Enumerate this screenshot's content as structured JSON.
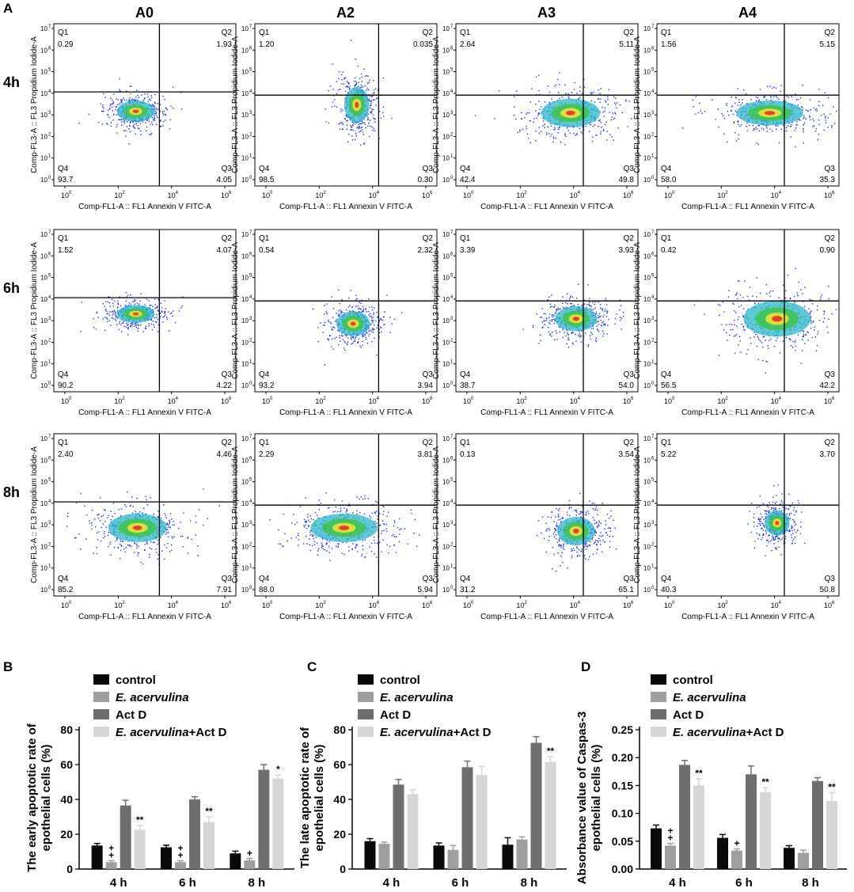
{
  "panel_letters": {
    "a": "A",
    "b": "B",
    "c": "C",
    "d": "D"
  },
  "flow": {
    "groups": [
      "A0",
      "A2",
      "A3",
      "A4"
    ],
    "times": [
      "4h",
      "6h",
      "8h"
    ],
    "x_axis_label": "Comp-FL1-A :: FL1 Annexin V FITC-A",
    "y_axis_label": "Comp-FL3-A :: FL3 Propidium Iodide-A",
    "tick_labels": [
      "10",
      "10",
      "10",
      "10"
    ],
    "tick_exponents": [
      "0",
      "2",
      "4",
      "6"
    ],
    "y_tick_labels": [
      "10",
      "10",
      "10",
      "10",
      "10",
      "10",
      "10",
      "10"
    ],
    "y_tick_exponents": [
      "0",
      "1",
      "2",
      "3",
      "4",
      "5",
      "6",
      "7"
    ],
    "quadrant_names": [
      "Q1",
      "Q2",
      "Q3",
      "Q4"
    ],
    "quadrants": [
      [
        {
          "Q1": "0.29",
          "Q2": "1.93",
          "Q3": "4.05",
          "Q4": "93.7"
        },
        {
          "Q1": "1.20",
          "Q2": "0.035",
          "Q3": "0.30",
          "Q4": "98.5"
        },
        {
          "Q1": "2.64",
          "Q2": "5.11",
          "Q3": "49.8",
          "Q4": "42.4"
        },
        {
          "Q1": "1.56",
          "Q2": "5.15",
          "Q3": "35.3",
          "Q4": "58.0"
        }
      ],
      [
        {
          "Q1": "1.52",
          "Q2": "4.07",
          "Q3": "4.22",
          "Q4": "90.2"
        },
        {
          "Q1": "0.54",
          "Q2": "2.32",
          "Q3": "3.94",
          "Q4": "93.2"
        },
        {
          "Q1": "3.39",
          "Q2": "3.93",
          "Q3": "54.0",
          "Q4": "38.7"
        },
        {
          "Q1": "0.42",
          "Q2": "0.90",
          "Q3": "42.2",
          "Q4": "56.5"
        }
      ],
      [
        {
          "Q1": "2.40",
          "Q2": "4.46",
          "Q3": "7.91",
          "Q4": "85.2"
        },
        {
          "Q1": "2.29",
          "Q2": "3.81",
          "Q3": "5.94",
          "Q4": "88.0"
        },
        {
          "Q1": "0.13",
          "Q2": "3.54",
          "Q3": "65.1",
          "Q4": "31.2"
        },
        {
          "Q1": "5.22",
          "Q2": "3.70",
          "Q3": "50.8",
          "Q4": "40.3"
        }
      ]
    ]
  },
  "legend_prefix": "E. acervulina",
  "legend": {
    "control": "control",
    "eac": "E. acervulina",
    "actd": "Act D",
    "combo_suffix": "+Act D"
  },
  "series_colors": [
    "#0a0a0a",
    "#9e9e9e",
    "#6e6e6e",
    "#d6d6d6"
  ],
  "chart_data": [
    {
      "type": "bar",
      "panel": "B",
      "ylabel_line1": "The early apoptotic rate of",
      "ylabel_line2": "epothelial cells (%)",
      "categories": [
        "4 h",
        "6 h",
        "8 h"
      ],
      "ylim": [
        0,
        80
      ],
      "yticks": [
        "0",
        "20",
        "40",
        "60",
        "80"
      ],
      "ytick_values": [
        0,
        20,
        40,
        60,
        80
      ],
      "series": [
        {
          "name": "control",
          "values": [
            13.5,
            12.5,
            9
          ],
          "errors": [
            1.2,
            1.2,
            1.3
          ]
        },
        {
          "name": "E. acervulina",
          "values": [
            4,
            4,
            5
          ],
          "errors": [
            0.8,
            0.8,
            1.0
          ]
        },
        {
          "name": "Act D",
          "values": [
            36.5,
            40,
            57
          ],
          "errors": [
            3,
            1.5,
            3
          ]
        },
        {
          "name": "E. acervulina+Act D",
          "values": [
            22.5,
            27,
            52
          ],
          "errors": [
            2.5,
            3,
            2
          ]
        }
      ],
      "annotations": [
        {
          "category": 0,
          "series": 1,
          "text": "+\n+"
        },
        {
          "category": 0,
          "series": 3,
          "text": "**"
        },
        {
          "category": 1,
          "series": 1,
          "text": "+\n+"
        },
        {
          "category": 1,
          "series": 3,
          "text": "**"
        },
        {
          "category": 2,
          "series": 1,
          "text": "+"
        },
        {
          "category": 2,
          "series": 3,
          "text": "*"
        }
      ]
    },
    {
      "type": "bar",
      "panel": "C",
      "ylabel_line1": "The late apoptotic rate of",
      "ylabel_line2": "epothelial cells (%)",
      "categories": [
        "4 h",
        "6 h",
        "8 h"
      ],
      "ylim": [
        0,
        80
      ],
      "yticks": [
        "0",
        "20",
        "40",
        "60",
        "80"
      ],
      "ytick_values": [
        0,
        20,
        40,
        60,
        80
      ],
      "series": [
        {
          "name": "control",
          "values": [
            16,
            13.5,
            14
          ],
          "errors": [
            1.5,
            1.5,
            4
          ]
        },
        {
          "name": "E. acervulina",
          "values": [
            14.5,
            11,
            17
          ],
          "errors": [
            1.0,
            2.5,
            1.5
          ]
        },
        {
          "name": "Act D",
          "values": [
            48.5,
            58.5,
            72.5
          ],
          "errors": [
            3,
            3.5,
            3.5
          ]
        },
        {
          "name": "E. acervulina+Act D",
          "values": [
            43,
            54,
            61.5
          ],
          "errors": [
            2.5,
            5,
            3
          ]
        }
      ],
      "annotations": [
        {
          "category": 2,
          "series": 3,
          "text": "**"
        }
      ]
    },
    {
      "type": "bar",
      "panel": "D",
      "ylabel_line1": "Absorbance value of Caspas-3",
      "ylabel_line2": "epothelial cells (%)",
      "categories": [
        "4 h",
        "6 h",
        "8 h"
      ],
      "ylim": [
        0,
        0.25
      ],
      "yticks": [
        "0.00",
        "0.05",
        "0.10",
        "0.15",
        "0.20",
        "0.25"
      ],
      "ytick_values": [
        0,
        0.05,
        0.1,
        0.15,
        0.2,
        0.25
      ],
      "series": [
        {
          "name": "control",
          "values": [
            0.073,
            0.056,
            0.038
          ],
          "errors": [
            0.006,
            0.006,
            0.004
          ]
        },
        {
          "name": "E. acervulina",
          "values": [
            0.042,
            0.033,
            0.029
          ],
          "errors": [
            0.004,
            0.003,
            0.005
          ]
        },
        {
          "name": "Act D",
          "values": [
            0.187,
            0.17,
            0.158
          ],
          "errors": [
            0.008,
            0.015,
            0.006
          ]
        },
        {
          "name": "E. acervulina+Act D",
          "values": [
            0.15,
            0.138,
            0.122
          ],
          "errors": [
            0.012,
            0.008,
            0.015
          ]
        }
      ],
      "annotations": [
        {
          "category": 0,
          "series": 1,
          "text": "+\n+"
        },
        {
          "category": 0,
          "series": 3,
          "text": "**"
        },
        {
          "category": 1,
          "series": 1,
          "text": "+"
        },
        {
          "category": 1,
          "series": 3,
          "text": "**"
        },
        {
          "category": 2,
          "series": 3,
          "text": "**"
        }
      ]
    }
  ]
}
